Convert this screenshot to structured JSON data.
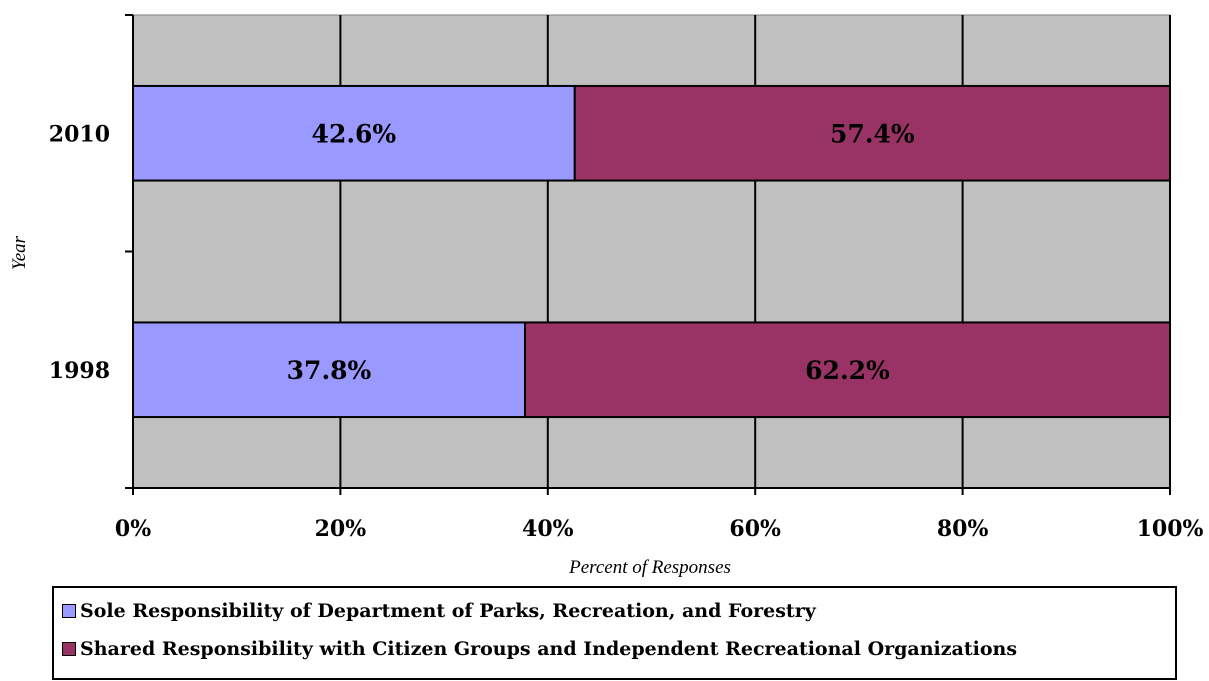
{
  "chart_data": {
    "type": "bar",
    "orientation": "horizontal",
    "stacked": true,
    "categories": [
      "1998",
      "2010"
    ],
    "series": [
      {
        "name": "Sole Responsibility of Department of Parks, Recreation, and Forestry",
        "values": [
          37.8,
          42.6
        ],
        "labels": [
          "37.8%",
          "42.6%"
        ],
        "color": "#9999ff"
      },
      {
        "name": "Shared Responsibility with Citizen Groups and Independent Recreational Organizations",
        "values": [
          62.2,
          57.4
        ],
        "labels": [
          "62.2%",
          "57.4%"
        ],
        "color": "#993366"
      }
    ],
    "xlabel": "Percent of Responses",
    "ylabel": "Year",
    "xlim": [
      0,
      100
    ],
    "xticks": [
      "0%",
      "20%",
      "40%",
      "60%",
      "80%",
      "100%"
    ],
    "plot_background": "#c0c0c0",
    "grid": true,
    "legend_position": "bottom"
  }
}
